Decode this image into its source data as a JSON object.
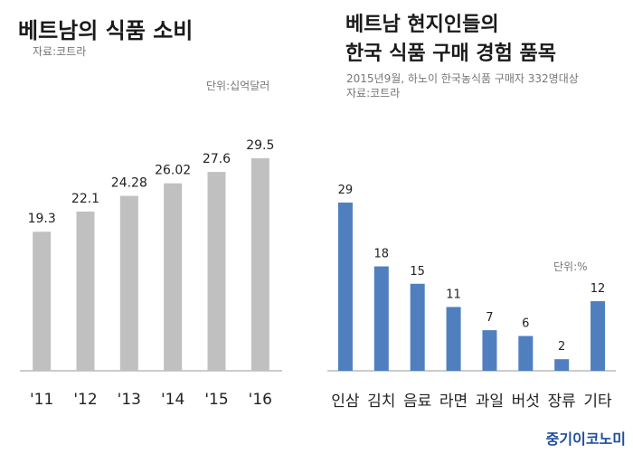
{
  "chart_data": [
    {
      "type": "bar",
      "title": "베트남의 식품 소비",
      "source": "자료:코트라",
      "unit": "단위:십억달러",
      "categories": [
        "'11",
        "'12",
        "'13",
        "'14",
        "'15",
        "'16"
      ],
      "values": [
        19.3,
        22.1,
        24.28,
        26.02,
        27.6,
        29.5
      ],
      "value_labels": [
        "19.3",
        "22.1",
        "24.28",
        "26.02",
        "27.6",
        "29.5"
      ],
      "bar_color": "#c0c0c0",
      "ylim": [
        0,
        30
      ]
    },
    {
      "type": "bar",
      "title_lines": [
        "베트남 현지인들의",
        "한국 식품 구매 경험 품목"
      ],
      "subtitle": "2015년9월, 하노이 한국농식품 구매자 332명대상",
      "source": "자료:코트라",
      "unit": "단위:%",
      "categories": [
        "인삼",
        "김치",
        "음료",
        "라면",
        "과일",
        "버섯",
        "장류",
        "기타"
      ],
      "values": [
        29,
        18,
        15,
        11,
        7,
        6,
        2,
        12
      ],
      "value_labels": [
        "29",
        "18",
        "15",
        "11",
        "7",
        "6",
        "2",
        "12"
      ],
      "bar_color": "#4f7fbf",
      "ylim": [
        0,
        29
      ]
    }
  ],
  "logo": {
    "text": "중기이코노미"
  }
}
